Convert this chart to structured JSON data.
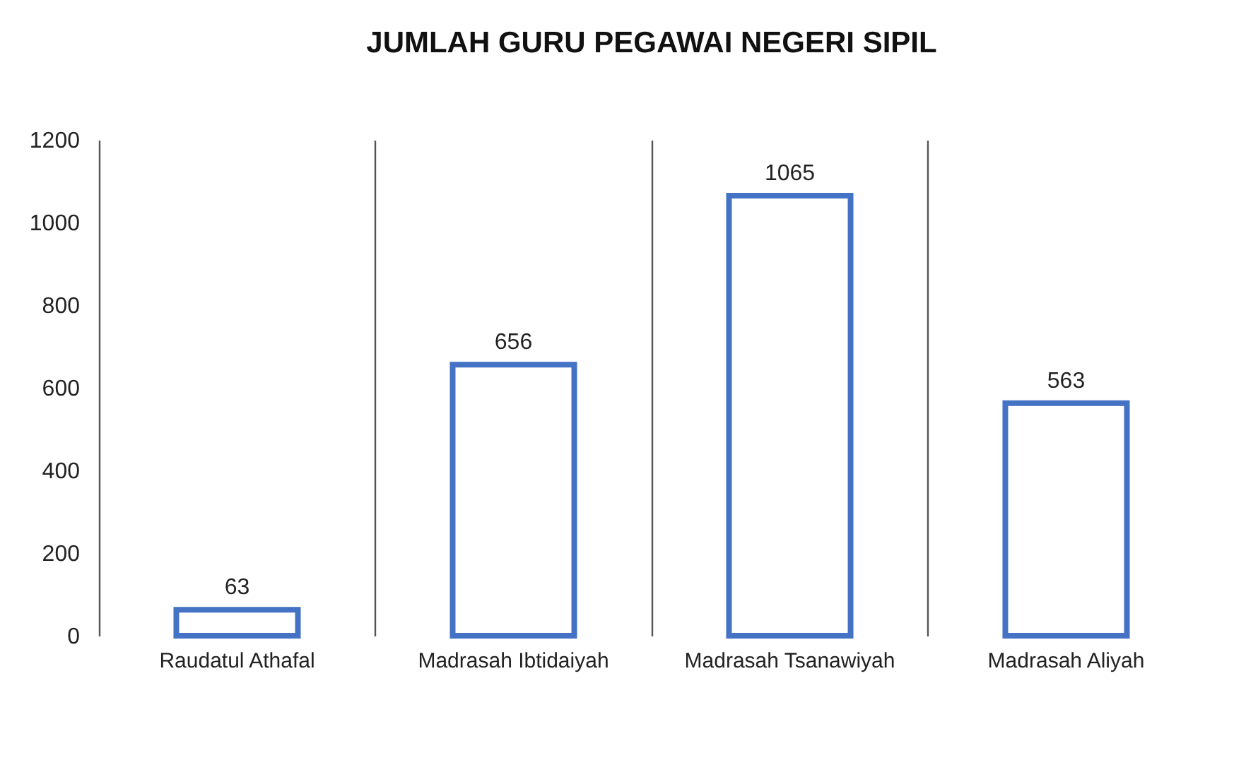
{
  "chart_data": {
    "type": "bar",
    "title": "JUMLAH GURU PEGAWAI NEGERI SIPIL",
    "categories": [
      "Raudatul Athafal",
      "Madrasah Ibtidaiyah",
      "Madrasah Tsanawiyah",
      "Madrasah Aliyah"
    ],
    "values": [
      63,
      656,
      1065,
      563
    ],
    "color": "#4472c4",
    "ylim": [
      0,
      1200
    ],
    "yticks": [
      0,
      200,
      400,
      600,
      800,
      1000,
      1200
    ],
    "grid": "x",
    "data_labels": true
  }
}
